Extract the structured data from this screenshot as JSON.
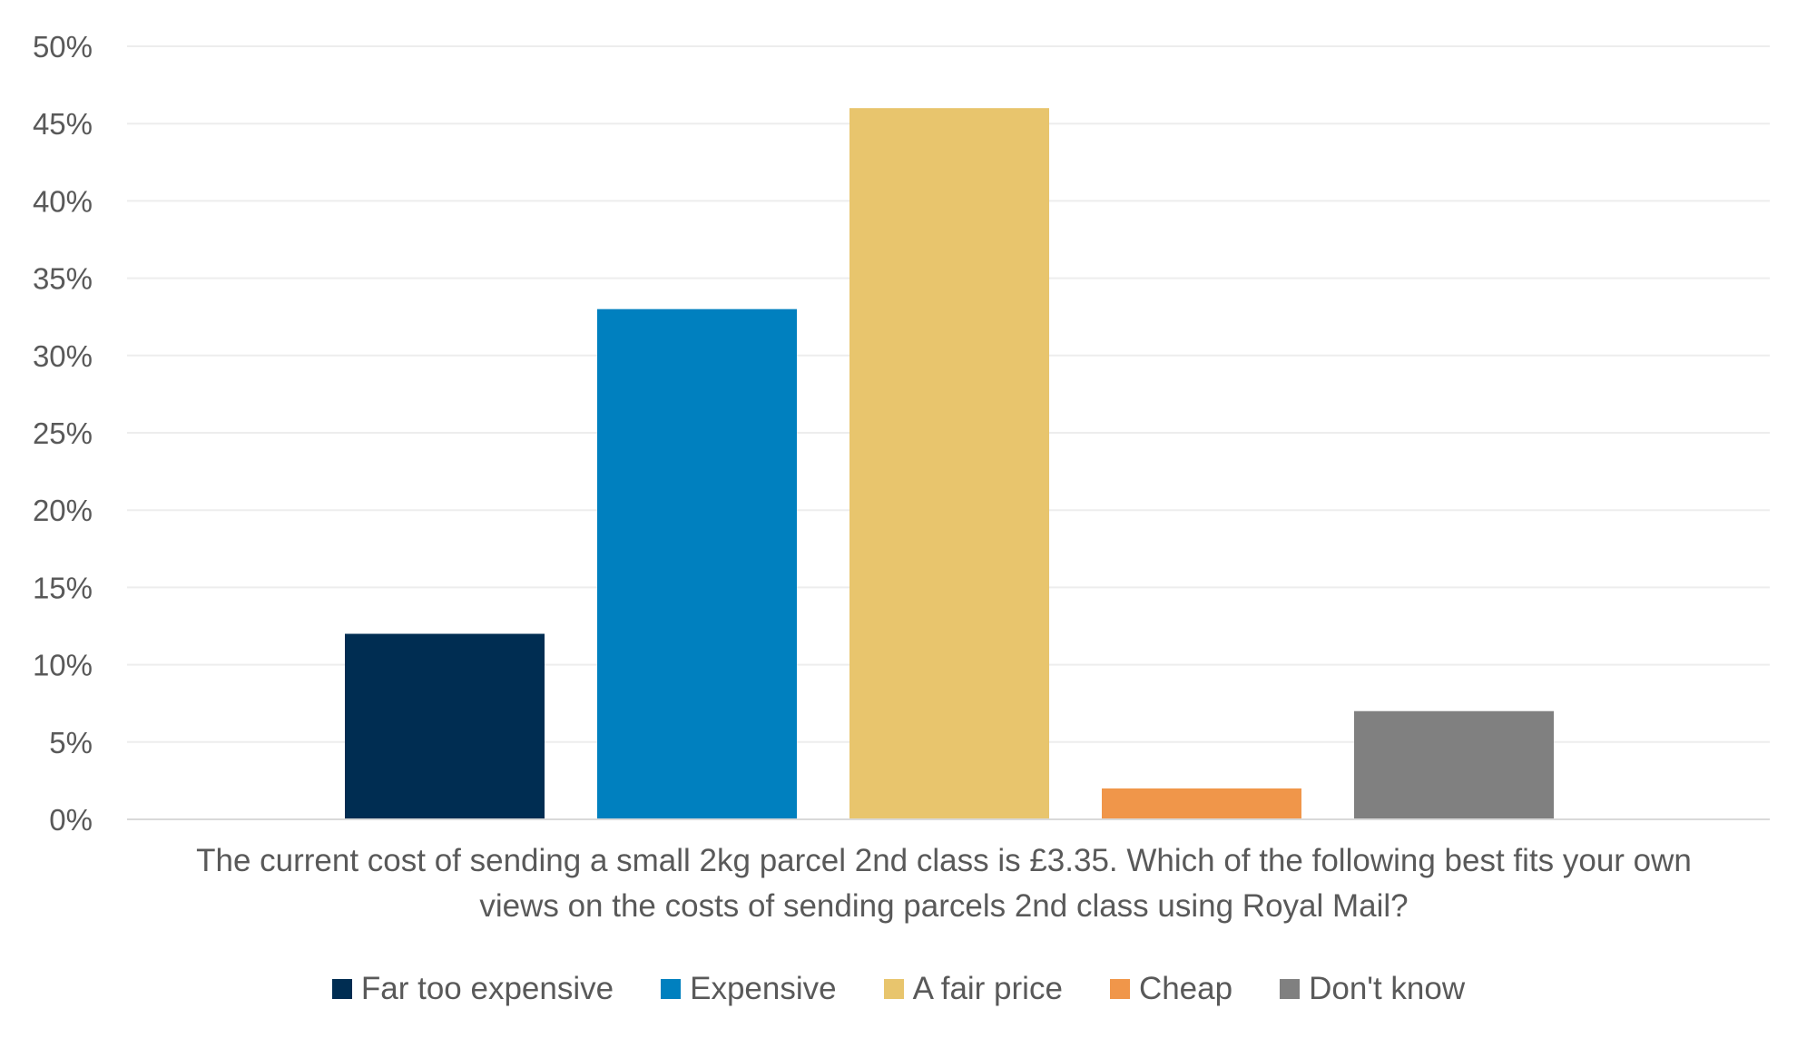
{
  "chart_data": {
    "type": "bar",
    "categories": [
      "Far too expensive",
      "Expensive",
      "A fair price",
      "Cheap",
      "Don't know"
    ],
    "values": [
      12,
      33,
      46,
      2,
      7
    ],
    "colors": [
      "#002D52",
      "#0080BF",
      "#E8C56D",
      "#F0964A",
      "#808080"
    ],
    "ylim": [
      0,
      50
    ],
    "ytick_step": 5,
    "ytick_labels": [
      "0%",
      "5%",
      "10%",
      "15%",
      "20%",
      "25%",
      "30%",
      "35%",
      "40%",
      "45%",
      "50%"
    ],
    "xlabel_lines": [
      "The current cost of sending a small 2kg parcel 2nd class is £3.35. Which of the following best fits your own",
      "views on the costs of sending parcels 2nd class using Royal Mail?"
    ],
    "grid": true,
    "legend_position": "bottom",
    "title": ""
  }
}
